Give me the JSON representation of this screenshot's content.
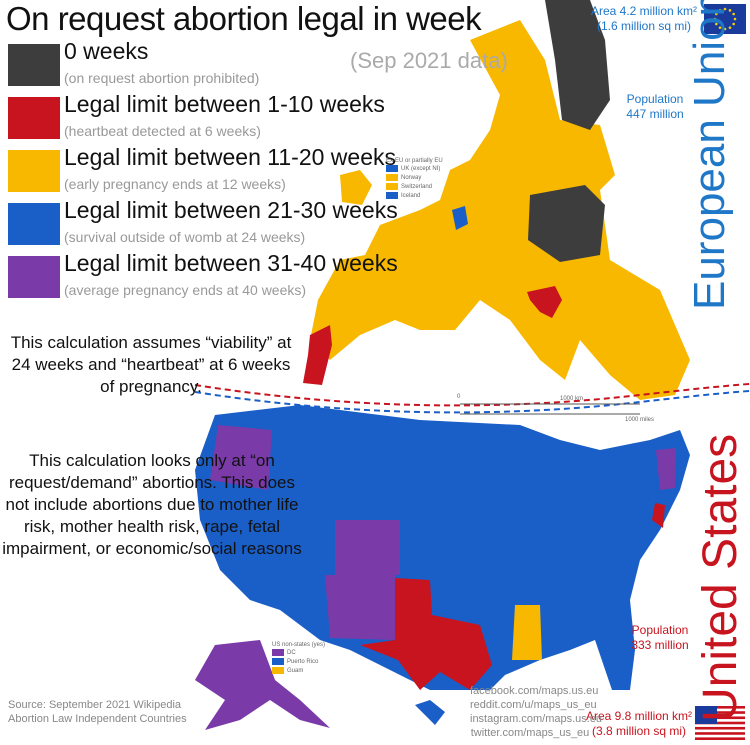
{
  "title": "On request abortion legal in week",
  "subtitle": "(Sep 2021 data)",
  "legend": [
    {
      "label": "0 weeks",
      "note": "(on request abortion prohibited)",
      "color": "#3d3d3d"
    },
    {
      "label": "Legal limit between 1-10 weeks",
      "note": "(heartbeat detected at 6 weeks)",
      "color": "#c8141e"
    },
    {
      "label": "Legal limit between 11-20 weeks",
      "note": "(early pregnancy ends at 12 weeks)",
      "color": "#f8b800"
    },
    {
      "label": "Legal limit between 21-30 weeks",
      "note": "(survival outside of womb at 24 weeks)",
      "color": "#1a5fc8"
    },
    {
      "label": "Legal limit between 31-40 weeks",
      "note": "(average pregnancy ends at 40 weeks)",
      "color": "#7a3aa8"
    }
  ],
  "notes": [
    "This calculation assumes “viability” at 24 weeks and “heartbeat” at 6 weeks of pregnancy.",
    "This calculation looks only at “on request/demand” abortions. This does not include abortions due to mother life risk, mother health risk, rape, fetal impairment, or economic/social reasons"
  ],
  "eu": {
    "name": "European Union",
    "area": "Area 4.2 million km²",
    "area_imperial": "(1.6 million sq mi)",
    "population_label": "Population",
    "population": "447 million"
  },
  "us": {
    "name": "United States",
    "population_label": "Population",
    "population": "333 million",
    "area": "Area 9.8 million km²",
    "area_imperial": "(3.8 million sq mi)"
  },
  "scale": {
    "zero": "0",
    "km": "1000 km",
    "miles": "1000 miles"
  },
  "ex_eu": {
    "title": "Ex-EU or partially EU",
    "items": [
      "UK (except NI)",
      "Norway",
      "Switzerland",
      "Iceland"
    ]
  },
  "us_non_states": {
    "title": "US non-states (yes)",
    "items": [
      "DC",
      "Puerto Rico",
      "Guam"
    ]
  },
  "source": [
    "Source: September 2021 Wikipedia",
    "Abortion Law Independent Countries"
  ],
  "social": [
    "facebook.com/maps.us.eu",
    "reddit.com/u/maps_us_eu",
    "instagram.com/maps.us.eu",
    "twitter.com/maps_us_eu"
  ]
}
